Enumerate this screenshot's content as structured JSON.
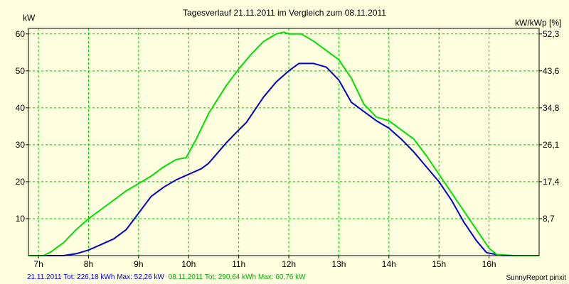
{
  "chart_data": {
    "type": "line",
    "title": "Tagesverlauf 21.11.2011 im Vergleich zum 08.11.2011",
    "ylabel_left": "kW",
    "ylabel_right": "kW/kWp [%]",
    "xlim": [
      6.8,
      17.0
    ],
    "ylim": [
      0,
      61.5
    ],
    "x_ticks": [
      7,
      8,
      9,
      10,
      11,
      12,
      13,
      14,
      15,
      16
    ],
    "x_tick_labels": [
      "7h",
      "8h",
      "9h",
      "10h",
      "11h",
      "12h",
      "13h",
      "14h",
      "15h",
      "16h"
    ],
    "y_ticks_left": [
      10,
      20,
      30,
      40,
      50,
      60
    ],
    "y_tick_labels_left": [
      "10",
      "20",
      "30",
      "40",
      "50",
      "60"
    ],
    "y_tick_labels_right": [
      "8,7",
      "17,4",
      "26,1",
      "34,8",
      "43,6",
      "52,3"
    ],
    "grid": true,
    "series": [
      {
        "color": "#0000cc",
        "x": [
          6.8,
          7.5,
          7.75,
          8.0,
          8.25,
          8.5,
          8.75,
          9.0,
          9.25,
          9.5,
          9.75,
          10.0,
          10.25,
          10.4,
          10.75,
          11.0,
          11.15,
          11.5,
          11.75,
          12.0,
          12.2,
          12.5,
          12.75,
          13.0,
          13.25,
          13.5,
          13.75,
          14.0,
          14.25,
          14.5,
          14.75,
          15.0,
          15.25,
          15.5,
          15.75,
          15.95,
          16.25,
          16.5,
          17.0
        ],
        "y": [
          0,
          0,
          0.5,
          1.5,
          3,
          4.5,
          7,
          11.5,
          16,
          18.5,
          20.5,
          22,
          23.5,
          25,
          30.5,
          34,
          36,
          43,
          47,
          50,
          52,
          52,
          51,
          47.5,
          41.5,
          39,
          36.5,
          34.5,
          31.5,
          28,
          24,
          20,
          15,
          9,
          4,
          0.8,
          0,
          0,
          0
        ]
      },
      {
        "color": "#00e000",
        "x": [
          6.8,
          7.1,
          7.25,
          7.5,
          7.75,
          8.0,
          8.25,
          8.5,
          8.75,
          9.0,
          9.25,
          9.5,
          9.75,
          9.95,
          10.15,
          10.4,
          10.75,
          11.0,
          11.25,
          11.5,
          11.75,
          11.9,
          12.0,
          12.25,
          12.5,
          12.75,
          13.0,
          13.25,
          13.5,
          13.75,
          14.0,
          14.15,
          14.5,
          14.75,
          15.0,
          15.25,
          15.5,
          15.75,
          16.0,
          16.15,
          16.5,
          17.0
        ],
        "y": [
          0,
          0,
          1,
          3.5,
          7,
          10,
          12.5,
          15,
          17.5,
          19.5,
          21.5,
          24,
          26,
          26.5,
          31.5,
          38.5,
          46,
          50.5,
          54.5,
          58,
          60,
          60.5,
          60,
          60,
          58,
          55.5,
          53,
          48,
          41,
          37.5,
          36.5,
          35,
          31.5,
          27,
          22,
          17,
          12,
          7,
          2,
          0.3,
          0,
          0
        ]
      }
    ],
    "footer": {
      "series1_text": "21.11.2011 Tot: 226,18 kWh Max: 52,26 kW",
      "series2_text": "08.11.2011 Tot: 290,64 kWh Max: 60,76 kW",
      "brand": "SunnyReport pinxit"
    }
  }
}
